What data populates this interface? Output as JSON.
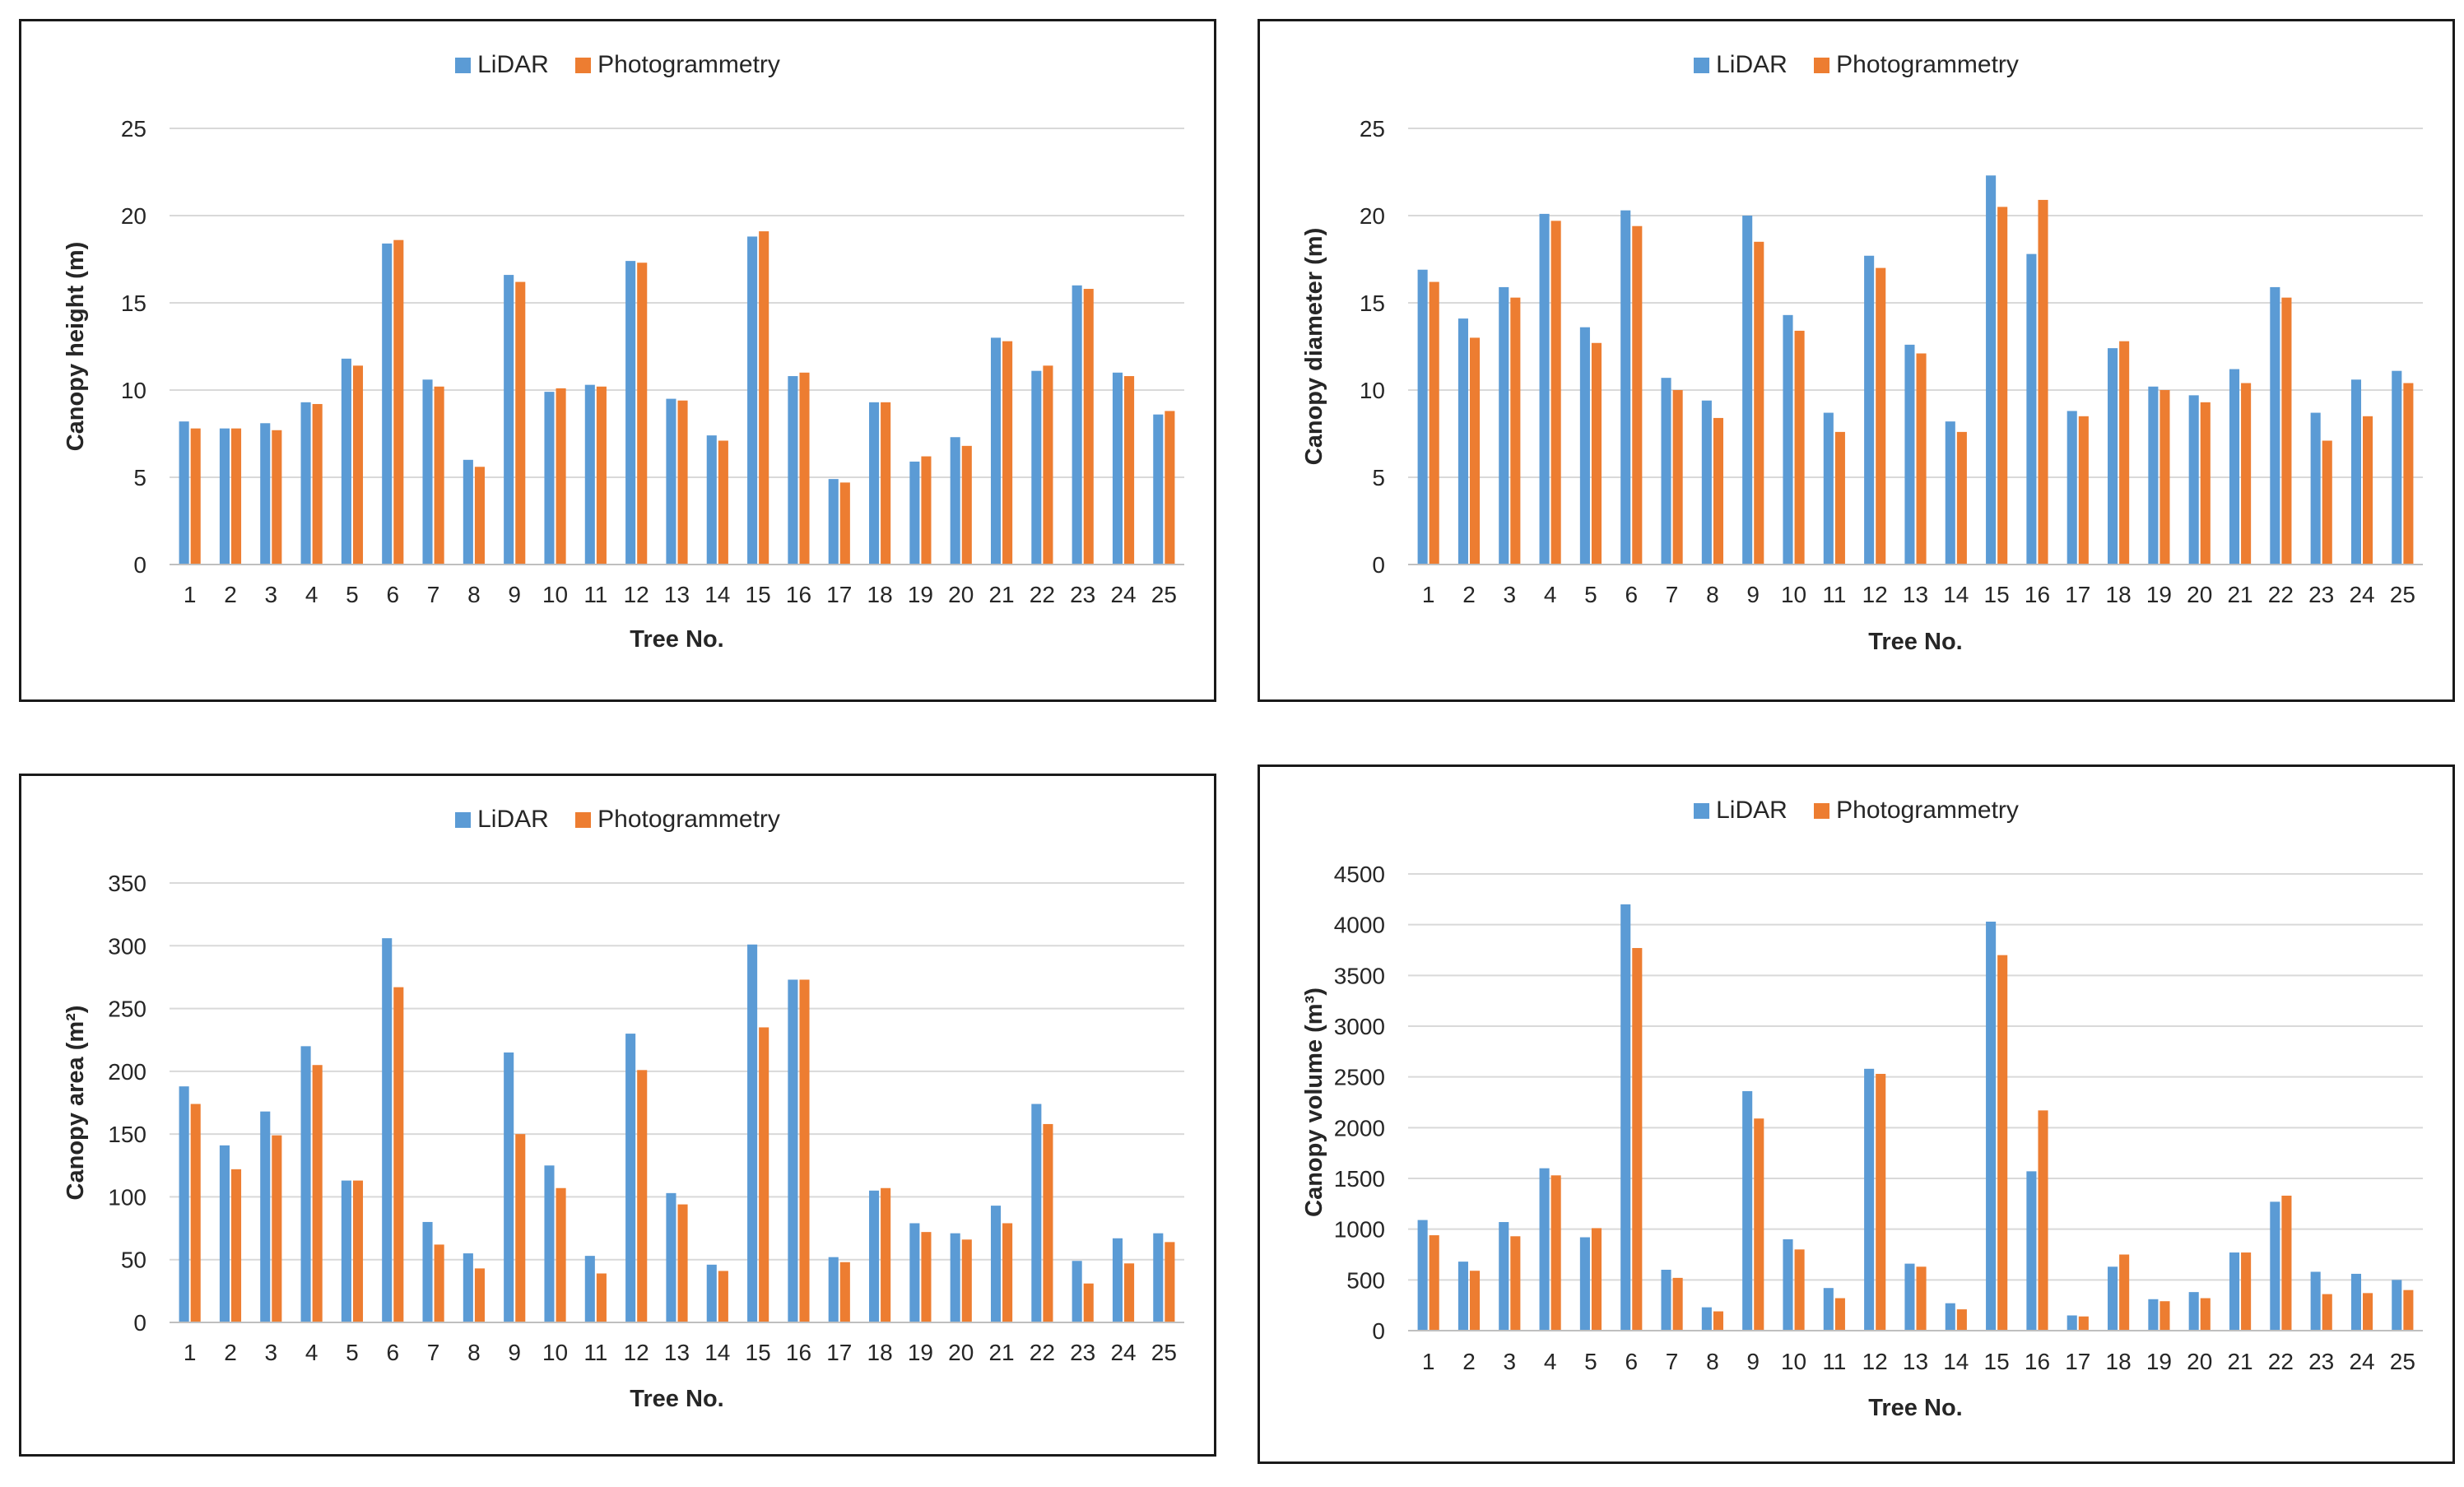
{
  "legend": {
    "series_a": "LiDAR",
    "series_b": "Photogrammetry"
  },
  "colors": {
    "lidar": "#5b9bd5",
    "photogrammetry": "#ed7d31",
    "grid": "#d9d9d9",
    "axis": "#bfbfbf"
  },
  "chart_data": [
    {
      "type": "bar",
      "xlabel": "Tree No.",
      "ylabel": "Canopy height (m)",
      "ylim": [
        0,
        25
      ],
      "yticks": [
        0,
        5,
        10,
        15,
        20,
        25
      ],
      "grid": true,
      "legend_position": "top",
      "categories": [
        "1",
        "2",
        "3",
        "4",
        "5",
        "6",
        "7",
        "8",
        "9",
        "10",
        "11",
        "12",
        "13",
        "14",
        "15",
        "16",
        "17",
        "18",
        "19",
        "20",
        "21",
        "22",
        "23",
        "24",
        "25"
      ],
      "series": [
        {
          "name": "LiDAR",
          "values": [
            8.2,
            7.8,
            8.1,
            9.3,
            11.8,
            18.4,
            10.6,
            6.0,
            16.6,
            9.9,
            10.3,
            17.4,
            9.5,
            7.4,
            18.8,
            10.8,
            4.9,
            9.3,
            5.9,
            7.3,
            13.0,
            11.1,
            16.0,
            11.0,
            8.6
          ]
        },
        {
          "name": "Photogrammetry",
          "values": [
            7.8,
            7.8,
            7.7,
            9.2,
            11.4,
            18.6,
            10.2,
            5.6,
            16.2,
            10.1,
            10.2,
            17.3,
            9.4,
            7.1,
            19.1,
            11.0,
            4.7,
            9.3,
            6.2,
            6.8,
            12.8,
            11.4,
            15.8,
            10.8,
            8.8
          ]
        }
      ]
    },
    {
      "type": "bar",
      "xlabel": "Tree No.",
      "ylabel": "Canopy diameter (m)",
      "ylim": [
        0,
        25
      ],
      "yticks": [
        0,
        5,
        10,
        15,
        20,
        25
      ],
      "grid": true,
      "legend_position": "top",
      "categories": [
        "1",
        "2",
        "3",
        "4",
        "5",
        "6",
        "7",
        "8",
        "9",
        "10",
        "11",
        "12",
        "13",
        "14",
        "15",
        "16",
        "17",
        "18",
        "19",
        "20",
        "21",
        "22",
        "23",
        "24",
        "25"
      ],
      "series": [
        {
          "name": "LiDAR",
          "values": [
            16.9,
            14.1,
            15.9,
            20.1,
            13.6,
            20.3,
            10.7,
            9.4,
            20.0,
            14.3,
            8.7,
            17.7,
            12.6,
            8.2,
            22.3,
            17.8,
            8.8,
            12.4,
            10.2,
            9.7,
            11.2,
            15.9,
            8.7,
            10.6,
            11.1
          ]
        },
        {
          "name": "Photogrammetry",
          "values": [
            16.2,
            13.0,
            15.3,
            19.7,
            12.7,
            19.4,
            10.0,
            8.4,
            18.5,
            13.4,
            7.6,
            17.0,
            12.1,
            7.6,
            20.5,
            20.9,
            8.5,
            12.8,
            10.0,
            9.3,
            10.4,
            15.3,
            7.1,
            8.5,
            10.4
          ]
        }
      ]
    },
    {
      "type": "bar",
      "xlabel": "Tree No.",
      "ylabel": "Canopy area (m²)",
      "ylim": [
        0,
        350
      ],
      "yticks": [
        0,
        50,
        100,
        150,
        200,
        250,
        300,
        350
      ],
      "grid": true,
      "legend_position": "top",
      "categories": [
        "1",
        "2",
        "3",
        "4",
        "5",
        "6",
        "7",
        "8",
        "9",
        "10",
        "11",
        "12",
        "13",
        "14",
        "15",
        "16",
        "17",
        "18",
        "19",
        "20",
        "21",
        "22",
        "23",
        "24",
        "25"
      ],
      "series": [
        {
          "name": "LiDAR",
          "values": [
            188,
            141,
            168,
            220,
            113,
            306,
            80,
            55,
            215,
            125,
            53,
            230,
            103,
            46,
            301,
            273,
            52,
            105,
            79,
            71,
            93,
            174,
            49,
            67,
            71
          ]
        },
        {
          "name": "Photogrammetry",
          "values": [
            174,
            122,
            149,
            205,
            113,
            267,
            62,
            43,
            150,
            107,
            39,
            201,
            94,
            41,
            235,
            273,
            48,
            107,
            72,
            66,
            79,
            158,
            31,
            47,
            64
          ]
        }
      ]
    },
    {
      "type": "bar",
      "xlabel": "Tree No.",
      "ylabel": "Canopy volume (m³)",
      "ylim": [
        0,
        4500
      ],
      "yticks": [
        0,
        500,
        1000,
        1500,
        2000,
        2500,
        3000,
        3500,
        4000,
        4500
      ],
      "grid": true,
      "legend_position": "top",
      "categories": [
        "1",
        "2",
        "3",
        "4",
        "5",
        "6",
        "7",
        "8",
        "9",
        "10",
        "11",
        "12",
        "13",
        "14",
        "15",
        "16",
        "17",
        "18",
        "19",
        "20",
        "21",
        "22",
        "23",
        "24",
        "25"
      ],
      "series": [
        {
          "name": "LiDAR",
          "values": [
            1090,
            680,
            1070,
            1600,
            920,
            4200,
            600,
            230,
            2360,
            900,
            420,
            2580,
            660,
            270,
            4030,
            1570,
            150,
            630,
            310,
            380,
            770,
            1270,
            580,
            560,
            500
          ]
        },
        {
          "name": "Photogrammetry",
          "values": [
            940,
            590,
            930,
            1530,
            1010,
            3770,
            520,
            190,
            2090,
            800,
            320,
            2530,
            630,
            210,
            3700,
            2170,
            140,
            750,
            290,
            320,
            770,
            1330,
            360,
            370,
            400
          ]
        }
      ]
    }
  ]
}
